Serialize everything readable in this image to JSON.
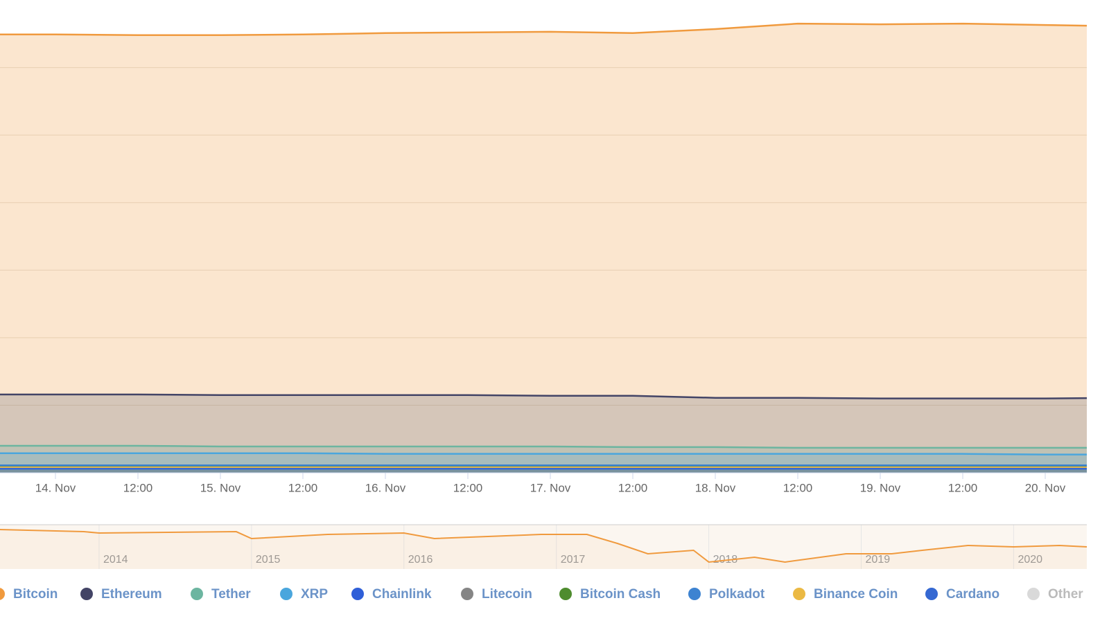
{
  "chart_data": [
    {
      "type": "area",
      "categories": [
        null,
        "14. Nov",
        "12:00",
        "15. Nov",
        "12:00",
        "16. Nov",
        "12:00",
        "17. Nov",
        "12:00",
        "18. Nov",
        "12:00",
        "19. Nov",
        "12:00",
        "20. Nov",
        null
      ],
      "ylim": [
        0,
        70
      ],
      "yticks": [
        10,
        20,
        30,
        40,
        50,
        60
      ],
      "grid": true,
      "series": [
        {
          "name": "Bitcoin",
          "color": "#f09a3e",
          "values": [
            64.9,
            64.9,
            64.8,
            64.8,
            64.9,
            65.1,
            65.2,
            65.3,
            65.1,
            65.7,
            66.5,
            66.4,
            66.5,
            66.3,
            66.1
          ]
        },
        {
          "name": "Ethereum",
          "color": "#434466",
          "values": [
            11.6,
            11.6,
            11.6,
            11.5,
            11.5,
            11.5,
            11.5,
            11.4,
            11.4,
            11.1,
            11.1,
            11.0,
            11.0,
            11.0,
            11.1
          ]
        },
        {
          "name": "Tether",
          "color": "#6cb5a0",
          "values": [
            4.0,
            4.0,
            4.0,
            3.9,
            3.9,
            3.9,
            3.9,
            3.9,
            3.8,
            3.8,
            3.7,
            3.7,
            3.7,
            3.7,
            3.7
          ]
        },
        {
          "name": "XRP",
          "color": "#4aa6dd",
          "values": [
            2.9,
            2.9,
            2.9,
            2.9,
            2.9,
            2.8,
            2.8,
            2.8,
            2.8,
            2.8,
            2.8,
            2.8,
            2.8,
            2.7,
            2.7
          ]
        },
        {
          "name": "Chainlink",
          "color": "#2f5fd8",
          "values": [
            1.1,
            1.1,
            1.1,
            1.1,
            1.1,
            1.1,
            1.1,
            1.1,
            1.1,
            1.0,
            1.0,
            1.0,
            1.0,
            1.0,
            1.0
          ]
        },
        {
          "name": "Litecoin",
          "color": "#858585",
          "values": [
            0.9,
            0.9,
            0.9,
            0.9,
            0.9,
            0.9,
            0.9,
            0.9,
            0.9,
            0.9,
            0.9,
            0.9,
            0.9,
            0.9,
            0.9
          ]
        },
        {
          "name": "Bitcoin Cash",
          "color": "#4e8c2e",
          "values": [
            1.0,
            1.0,
            1.0,
            1.0,
            1.0,
            1.0,
            1.0,
            1.0,
            1.0,
            1.0,
            1.0,
            1.0,
            1.0,
            1.0,
            1.0
          ]
        },
        {
          "name": "Polkadot",
          "color": "#3d83d1",
          "values": [
            1.1,
            1.1,
            1.1,
            1.1,
            1.1,
            1.1,
            1.1,
            1.1,
            1.1,
            1.1,
            1.1,
            1.1,
            1.1,
            1.1,
            1.1
          ]
        },
        {
          "name": "Binance Coin",
          "color": "#ebb943",
          "values": [
            0.8,
            0.8,
            0.8,
            0.8,
            0.8,
            0.8,
            0.8,
            0.8,
            0.8,
            0.8,
            0.8,
            0.8,
            0.8,
            0.8,
            0.8
          ]
        },
        {
          "name": "Cardano",
          "color": "#3568d2",
          "values": [
            0.6,
            0.6,
            0.6,
            0.6,
            0.6,
            0.6,
            0.6,
            0.6,
            0.6,
            0.6,
            0.6,
            0.6,
            0.6,
            0.6,
            0.6
          ]
        },
        {
          "name": "Other",
          "color": "#d9d9d9",
          "visible": false
        }
      ]
    },
    {
      "type": "line",
      "x": [
        2013.35,
        2013.9,
        2014.0,
        2014.9,
        2015.0,
        2015.5,
        2016.0,
        2016.2,
        2016.9,
        2017.2,
        2017.4,
        2017.6,
        2017.9,
        2018.0,
        2018.3,
        2018.5,
        2018.9,
        2019.2,
        2019.4,
        2019.7,
        2020.0,
        2020.3,
        2020.48
      ],
      "values": [
        89.6,
        86.3,
        84.2,
        86.3,
        75.5,
        82.0,
        84.2,
        75.5,
        82.0,
        82.0,
        67.9,
        51.7,
        57.1,
        38.7,
        46.2,
        38.7,
        51.7,
        51.7,
        57.1,
        64.7,
        62.5,
        64.7,
        62.5
      ],
      "color": "#f09a3e",
      "xlim": [
        2013.35,
        2020.48
      ],
      "xticks": [
        2014,
        2015,
        2016,
        2017,
        2018,
        2019,
        2020
      ],
      "ylim": [
        30,
        95
      ]
    }
  ]
}
